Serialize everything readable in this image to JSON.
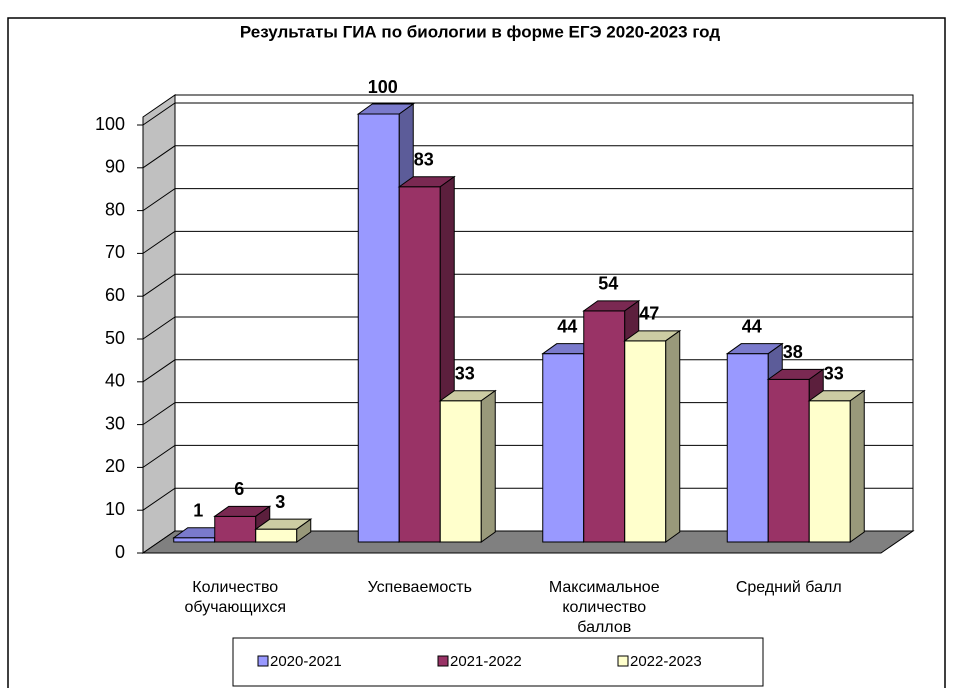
{
  "chart_data": {
    "type": "bar3d",
    "title": "Результаты ГИА по биологии в форме ЕГЭ 2020-2023 год",
    "categories": [
      "Количество обучающихся",
      "Успеваемость",
      "Максимальное количество баллов",
      "Средний балл"
    ],
    "series": [
      {
        "name": "2020-2021",
        "color": "#9999ff",
        "values": [
          1,
          100,
          44,
          44
        ]
      },
      {
        "name": "2021-2022",
        "color": "#993366",
        "values": [
          6,
          83,
          54,
          38
        ]
      },
      {
        "name": "2022-2023",
        "color": "#ffffcc",
        "values": [
          3,
          33,
          47,
          33
        ]
      }
    ],
    "ylim": [
      0,
      100
    ],
    "yticks": [
      0,
      10,
      20,
      30,
      40,
      50,
      60,
      70,
      80,
      90,
      100
    ],
    "grid": true,
    "legend": "bottom"
  }
}
